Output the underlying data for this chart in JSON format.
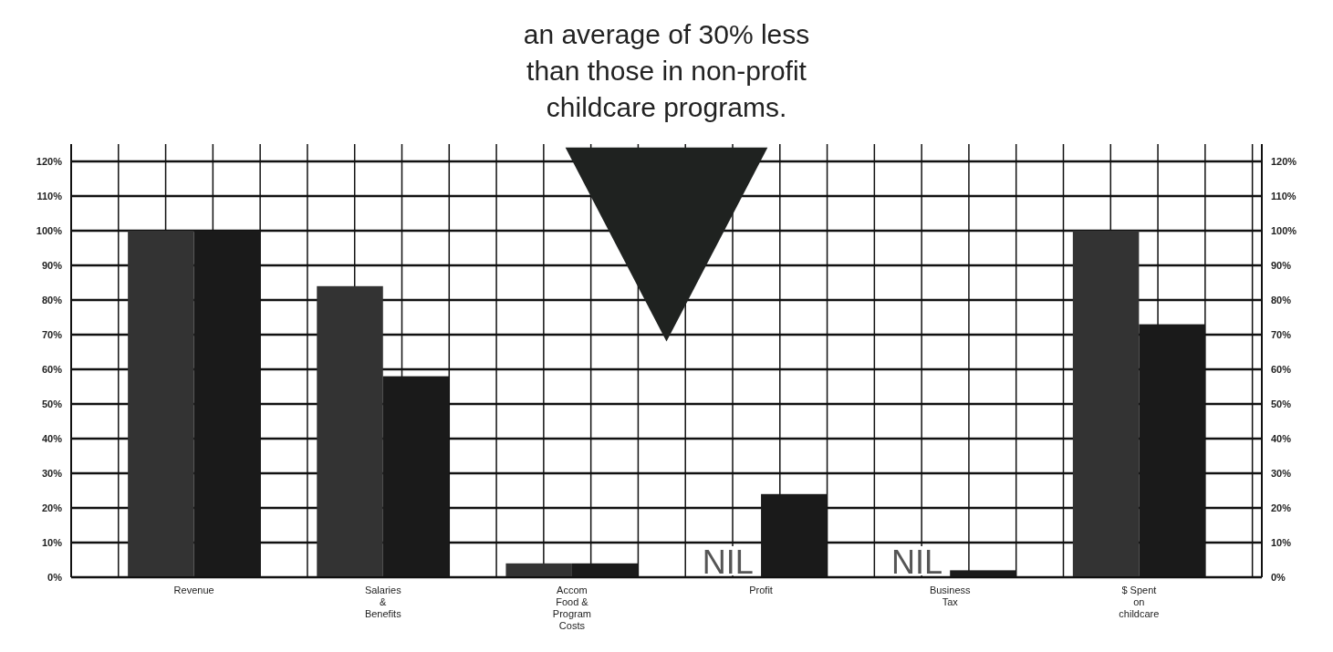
{
  "chart_data": {
    "type": "bar",
    "title": "an average of 30% less than those in non-profit childcare programs.",
    "categories": [
      "Revenue",
      "Salaries & Benefits",
      "Accom Food & Program Costs",
      "Profit",
      "Business Tax",
      "$ Spent on childcare"
    ],
    "series": [
      {
        "color": "#333333",
        "values": [
          100,
          84,
          4,
          null,
          null,
          100
        ]
      },
      {
        "color": "#1a1a1a",
        "values": [
          100,
          58,
          4,
          24,
          2,
          73
        ]
      }
    ],
    "ylim": [
      0,
      125
    ],
    "yticks": [
      {
        "value": 0,
        "label": "0%"
      },
      {
        "value": 10,
        "label": "10%"
      },
      {
        "value": 20,
        "label": "20%"
      },
      {
        "value": 30,
        "label": "30%"
      },
      {
        "value": 40,
        "label": "40%"
      },
      {
        "value": 50,
        "label": "50%"
      },
      {
        "value": 60,
        "label": "60%"
      },
      {
        "value": 70,
        "label": "70%"
      },
      {
        "value": 80,
        "label": "80%"
      },
      {
        "value": 90,
        "label": "90%"
      },
      {
        "value": 100,
        "label": "100%"
      },
      {
        "value": 110,
        "label": "110%"
      },
      {
        "value": 120,
        "label": "120%"
      }
    ],
    "y2lim": [
      0,
      125
    ],
    "y2ticks": [
      {
        "value": 0,
        "label": "0%"
      },
      {
        "value": 10,
        "label": "10%"
      },
      {
        "value": 20,
        "label": "20%"
      },
      {
        "value": 30,
        "label": "30%"
      },
      {
        "value": 40,
        "label": "40%"
      },
      {
        "value": 50,
        "label": "50%"
      },
      {
        "value": 60,
        "label": "60%"
      },
      {
        "value": 70,
        "label": "70%"
      },
      {
        "value": 80,
        "label": "80%"
      },
      {
        "value": 90,
        "label": "90%"
      },
      {
        "value": 100,
        "label": "100%"
      },
      {
        "value": 110,
        "label": "110%"
      },
      {
        "value": 120,
        "label": "120%"
      }
    ],
    "grid": true,
    "annotations": [
      {
        "text": "NIL",
        "x": "Profit",
        "y": 0
      },
      {
        "text": "NIL",
        "x": "Business Tax",
        "y": 0
      }
    ]
  }
}
